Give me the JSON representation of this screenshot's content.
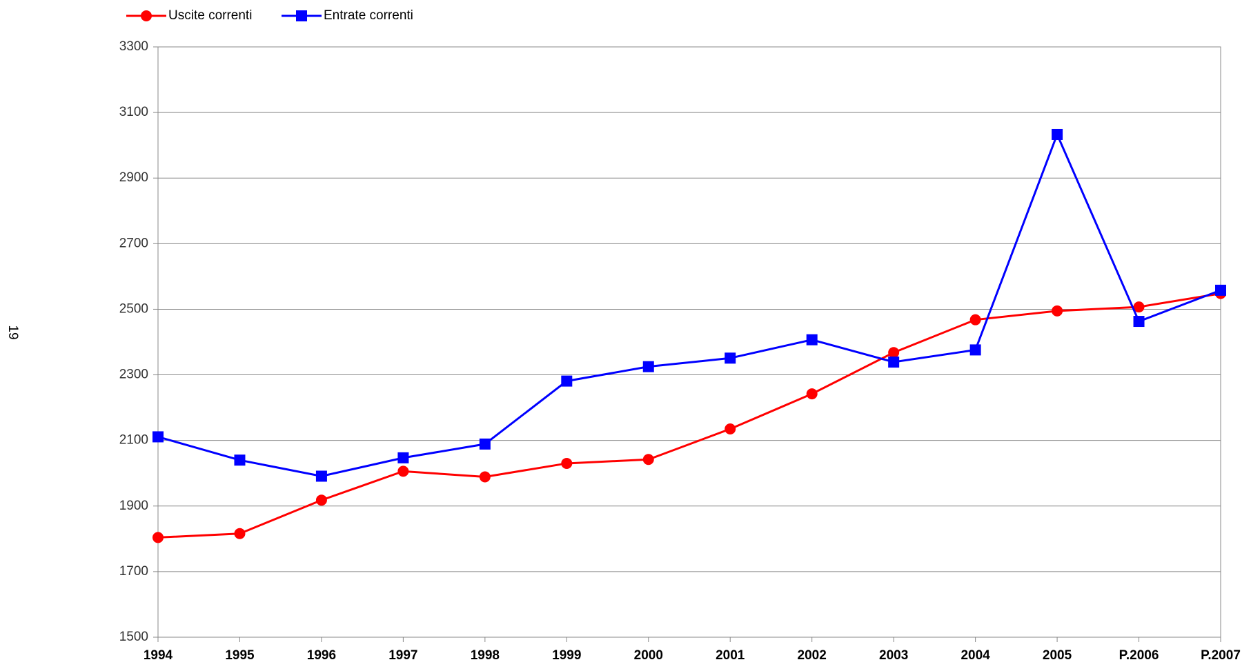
{
  "page_number": "19",
  "chart_data": {
    "type": "line",
    "categories": [
      "1994",
      "1995",
      "1996",
      "1997",
      "1998",
      "1999",
      "2000",
      "2001",
      "2002",
      "2003",
      "2004",
      "2005",
      "P.2006",
      "P.2007"
    ],
    "series": [
      {
        "name": "Uscite correnti",
        "color": "#ff0000",
        "marker": "circle",
        "values": [
          1804,
          1816,
          1918,
          2006,
          1989,
          2030,
          2042,
          2135,
          2242,
          2368,
          2468,
          2495,
          2507,
          2548
        ]
      },
      {
        "name": "Entrate correnti",
        "color": "#0000ff",
        "marker": "square",
        "values": [
          2111,
          2040,
          1991,
          2047,
          2089,
          2281,
          2325,
          2351,
          2407,
          2339,
          2376,
          3033,
          2463,
          2558
        ]
      }
    ],
    "ylim": [
      1500,
      3300
    ],
    "yticks": [
      1500,
      1700,
      1900,
      2100,
      2300,
      2500,
      2700,
      2900,
      3100,
      3300
    ],
    "grid": true,
    "legend": "top-left"
  }
}
